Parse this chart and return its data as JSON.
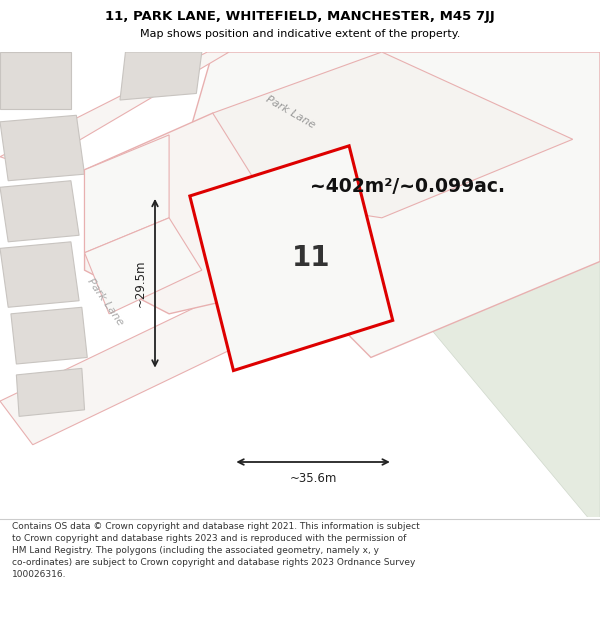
{
  "title_line1": "11, PARK LANE, WHITEFIELD, MANCHESTER, M45 7JJ",
  "title_line2": "Map shows position and indicative extent of the property.",
  "area_label": "~402m²/~0.099ac.",
  "width_label": "~35.6m",
  "height_label": "~29.5m",
  "property_number": "11",
  "road_label_upper": "Park Lane",
  "road_label_left": "Park Lane",
  "footer": "Contains OS data © Crown copyright and database right 2021. This information is subject\nto Crown copyright and database rights 2023 and is reproduced with the permission of\nHM Land Registry. The polygons (including the associated geometry, namely x, y\nco-ordinates) are subject to Crown copyright and database rights 2023 Ordnance Survey\n100026316.",
  "map_bg": "#f8f8f6",
  "green_area": "#e8ede4",
  "footer_bg": "#ffffff",
  "title_bg": "#ffffff",
  "property_edge": "#dd0000",
  "parcel_edge_pink": "#e8b0b0",
  "parcel_fill_light": "#f5f2f0",
  "building_fill": "#e0dcd8",
  "building_edge": "#c8c4c0"
}
